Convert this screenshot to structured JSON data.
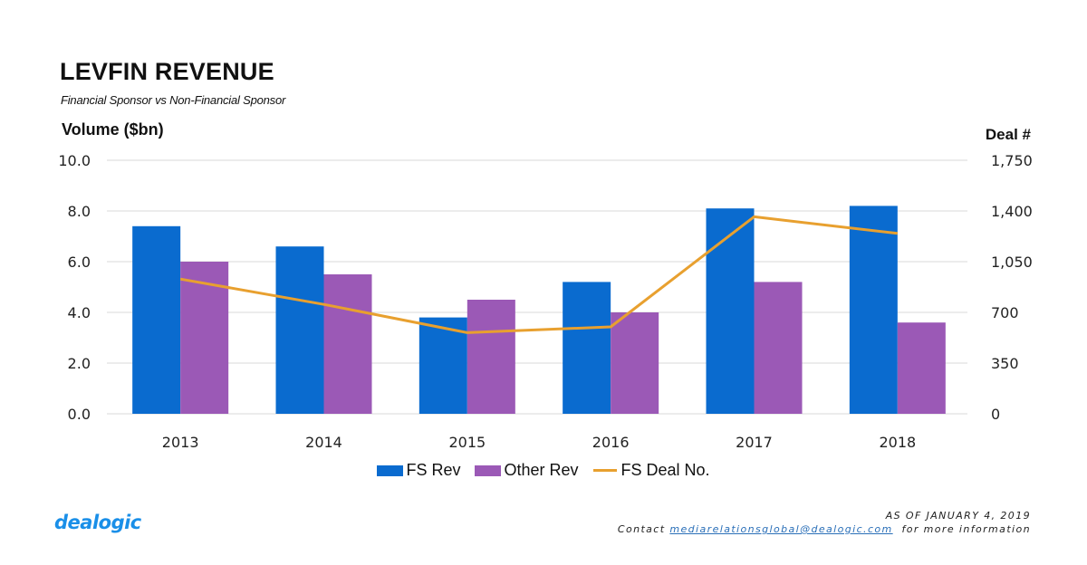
{
  "header": {
    "title": "LEVFIN REVENUE",
    "subtitle": "Financial Sponsor vs Non-Financial Sponsor"
  },
  "footer": {
    "logo": "dealogic",
    "as_of": "AS OF JANUARY 4, 2019",
    "contact_prefix": "Contact",
    "contact_email": "mediarelationsglobal@dealogic.com",
    "contact_suffix": "for more information"
  },
  "colors": {
    "fs_rev": "#0a6bcf",
    "other_rev": "#9b59b6",
    "fs_deal_no": "#e8a02f",
    "grid": "#d9d9d9"
  },
  "chart_data": {
    "type": "bar",
    "title": "LEVFIN REVENUE",
    "subtitle": "Financial Sponsor vs Non-Financial Sponsor",
    "xlabel": "",
    "ylabel": "Volume ($bn)",
    "y2label": "Deal #",
    "categories": [
      "2013",
      "2014",
      "2015",
      "2016",
      "2017",
      "2018"
    ],
    "ylim": [
      0,
      10
    ],
    "yticks": [
      "0.0",
      "2.0",
      "4.0",
      "6.0",
      "8.0",
      "10.0"
    ],
    "y2lim": [
      0,
      1750
    ],
    "y2ticks": [
      "0",
      "350",
      "700",
      "1,050",
      "1,400",
      "1,750"
    ],
    "grid": true,
    "legend_position": "bottom",
    "series": [
      {
        "name": "FS Rev",
        "type": "bar",
        "axis": "left",
        "values": [
          7.4,
          6.6,
          3.8,
          5.2,
          8.1,
          8.2
        ]
      },
      {
        "name": "Other Rev",
        "type": "bar",
        "axis": "left",
        "values": [
          6.0,
          5.5,
          4.5,
          4.0,
          5.2,
          3.6
        ]
      },
      {
        "name": "FS Deal No.",
        "type": "line",
        "axis": "right",
        "values": [
          930,
          755,
          560,
          600,
          1360,
          1245
        ]
      }
    ]
  }
}
